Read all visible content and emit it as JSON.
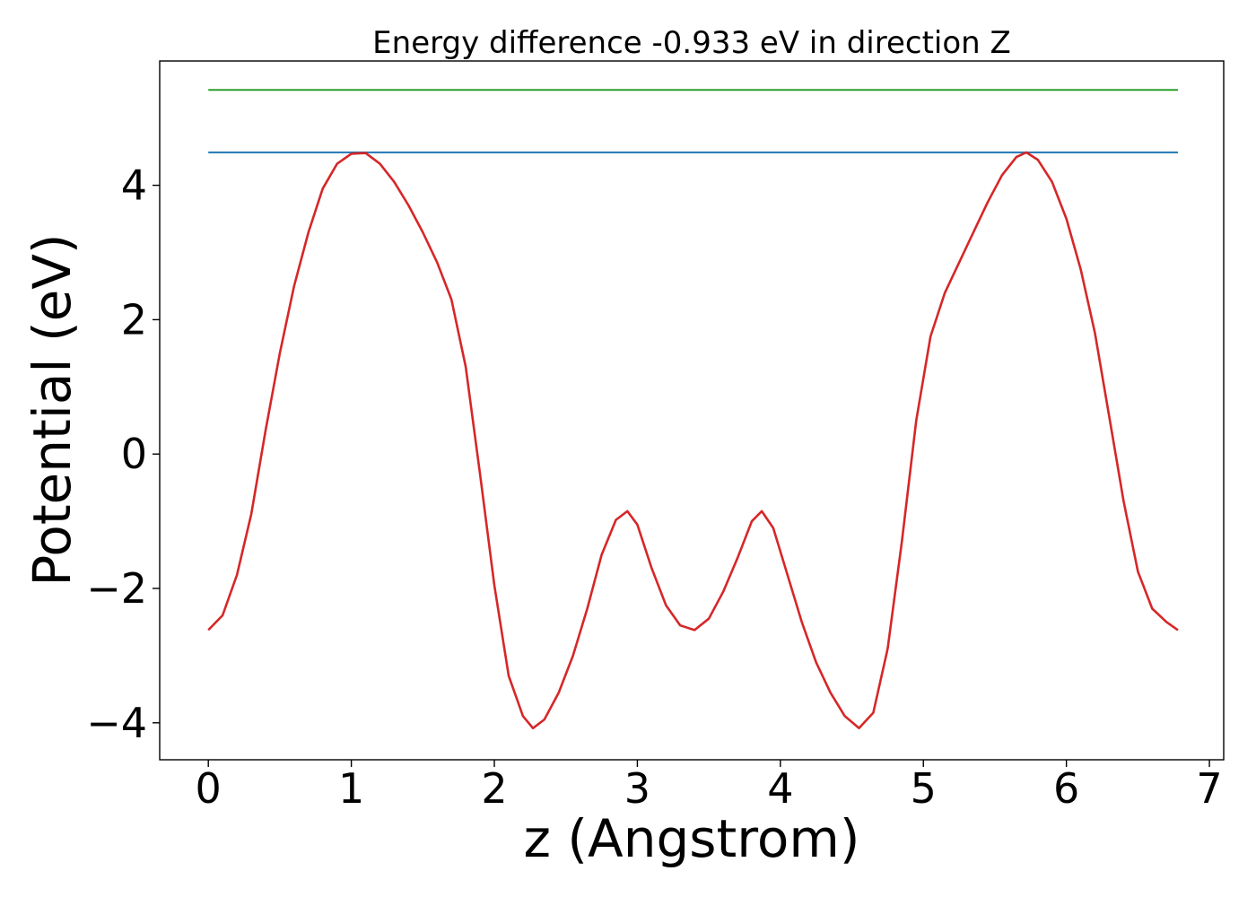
{
  "chart_data": {
    "type": "line",
    "title": "Energy difference -0.933 eV in direction Z",
    "xlabel": "z (Angstrom)",
    "ylabel": "Potential (eV)",
    "xlim": [
      -0.34,
      7.1
    ],
    "ylim": [
      -4.55,
      5.85
    ],
    "xticks": [
      0,
      1,
      2,
      3,
      4,
      5,
      6,
      7
    ],
    "yticks": [
      -4,
      -2,
      0,
      2,
      4
    ],
    "xtick_labels": [
      "0",
      "1",
      "2",
      "3",
      "4",
      "5",
      "6",
      "7"
    ],
    "ytick_labels": [
      "−4",
      "−2",
      "0",
      "2",
      "4"
    ],
    "grid": false,
    "series": [
      {
        "color": "#2ca02c",
        "x": [
          0,
          6.78
        ],
        "y": [
          5.42,
          5.42
        ]
      },
      {
        "color": "#1f77b4",
        "x": [
          0,
          6.78
        ],
        "y": [
          4.49,
          4.49
        ]
      },
      {
        "color": "#d62728",
        "x": [
          0,
          0.1,
          0.2,
          0.3,
          0.4,
          0.5,
          0.6,
          0.7,
          0.8,
          0.9,
          1.0,
          1.1,
          1.2,
          1.3,
          1.4,
          1.5,
          1.6,
          1.7,
          1.8,
          1.9,
          2.0,
          2.1,
          2.2,
          2.27,
          2.35,
          2.45,
          2.55,
          2.65,
          2.75,
          2.85,
          2.93,
          3.0,
          3.1,
          3.2,
          3.3,
          3.4,
          3.5,
          3.6,
          3.7,
          3.8,
          3.87,
          3.95,
          4.05,
          4.15,
          4.25,
          4.35,
          4.45,
          4.55,
          4.65,
          4.75,
          4.85,
          4.95,
          5.05,
          5.15,
          5.25,
          5.35,
          5.45,
          5.55,
          5.65,
          5.72,
          5.8,
          5.9,
          6.0,
          6.1,
          6.2,
          6.3,
          6.4,
          6.5,
          6.6,
          6.7,
          6.78
        ],
        "y": [
          -2.62,
          -2.4,
          -1.8,
          -0.9,
          0.35,
          1.5,
          2.5,
          3.3,
          3.95,
          4.32,
          4.47,
          4.48,
          4.32,
          4.05,
          3.7,
          3.3,
          2.85,
          2.3,
          1.3,
          -0.3,
          -1.95,
          -3.3,
          -3.9,
          -4.08,
          -3.95,
          -3.55,
          -3.0,
          -2.3,
          -1.5,
          -0.98,
          -0.85,
          -1.05,
          -1.7,
          -2.25,
          -2.55,
          -2.62,
          -2.45,
          -2.05,
          -1.55,
          -1.0,
          -0.85,
          -1.1,
          -1.8,
          -2.5,
          -3.1,
          -3.55,
          -3.9,
          -4.08,
          -3.85,
          -2.9,
          -1.3,
          0.5,
          1.75,
          2.4,
          2.85,
          3.3,
          3.75,
          4.15,
          4.42,
          4.49,
          4.38,
          4.05,
          3.5,
          2.75,
          1.8,
          0.55,
          -0.7,
          -1.75,
          -2.3,
          -2.5,
          -2.62
        ]
      }
    ]
  }
}
